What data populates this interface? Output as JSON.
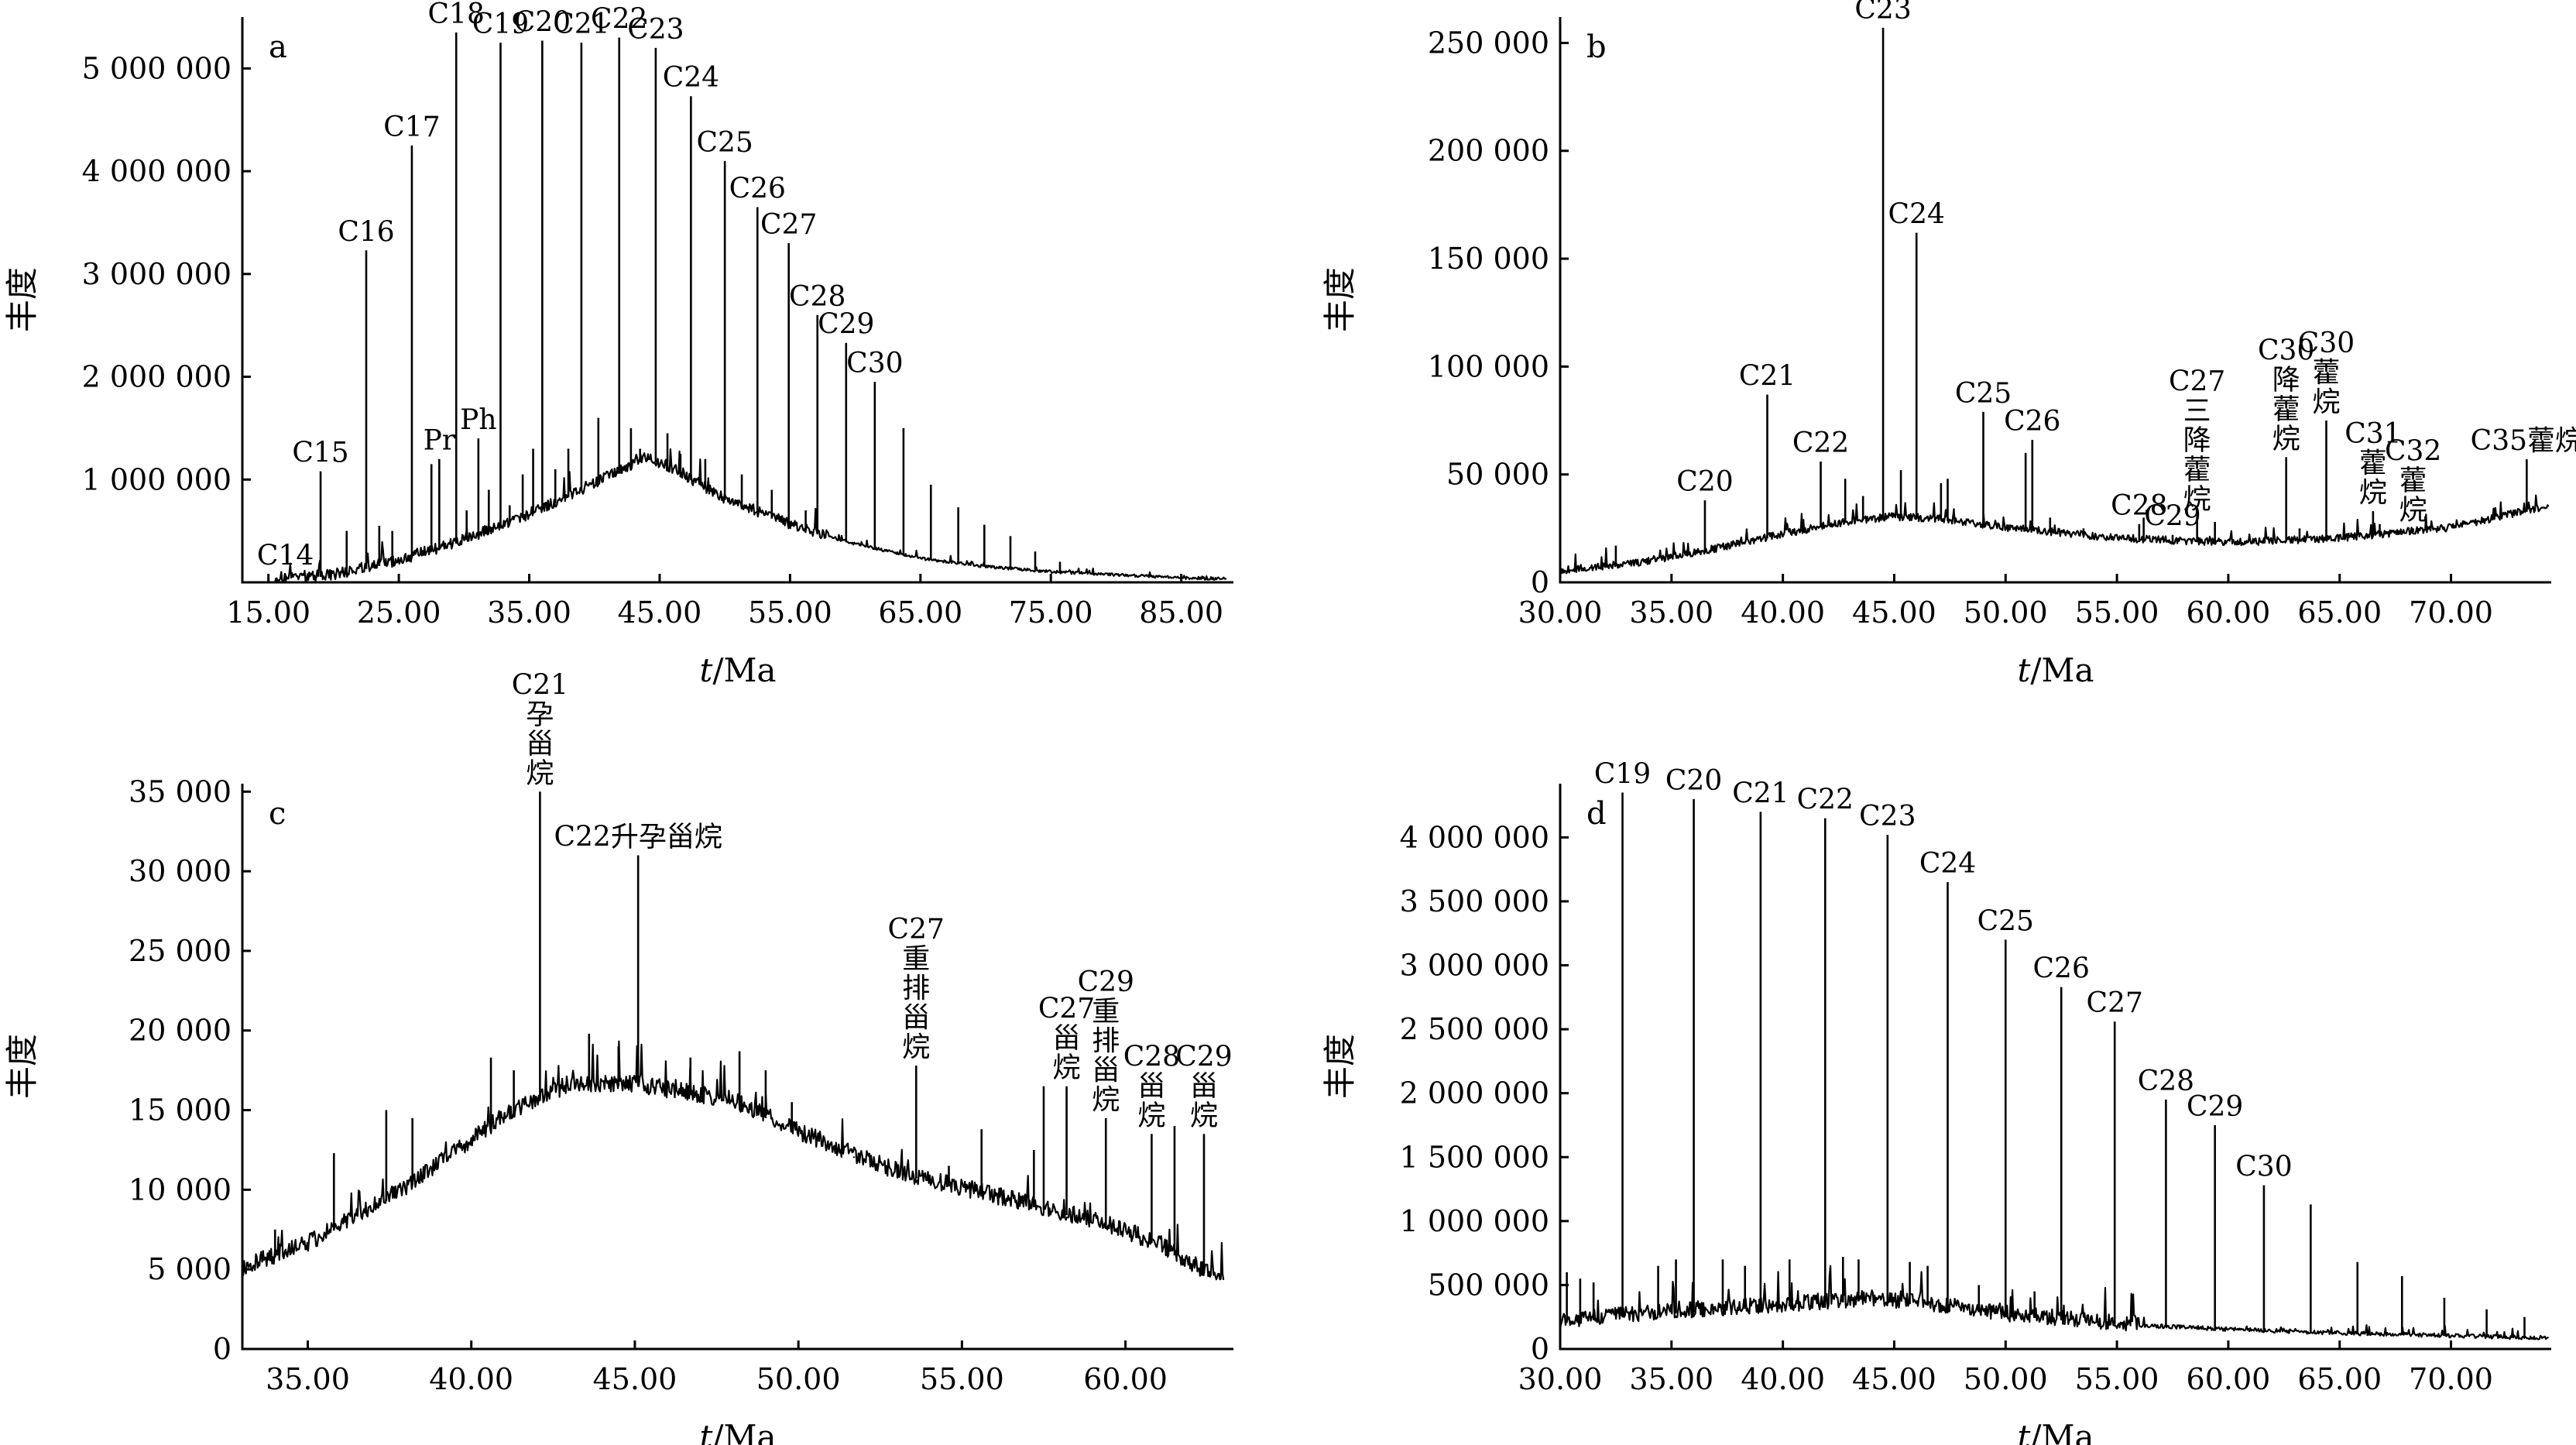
{
  "chart_data": [
    {
      "panel": "a",
      "type": "line",
      "ylabel": "丰度",
      "xlabel_italic": "t",
      "xlabel_rest": "/Ma",
      "xlim": [
        13,
        89
      ],
      "ylim": [
        0,
        5500000
      ],
      "xticks": [
        15,
        25,
        35,
        45,
        55,
        65,
        75,
        85
      ],
      "xtick_labels": [
        "15.00",
        "25.00",
        "35.00",
        "45.00",
        "55.00",
        "65.00",
        "75.00",
        "85.00"
      ],
      "yticks": [
        1000000,
        2000000,
        3000000,
        4000000,
        5000000
      ],
      "ytick_labels": [
        "1 000 000",
        "2 000 000",
        "3 000 000",
        "4 000 000",
        "5 000 000"
      ],
      "baseline": [
        [
          15.5,
          30000
        ],
        [
          20,
          60000
        ],
        [
          25,
          200000
        ],
        [
          30,
          400000
        ],
        [
          35,
          650000
        ],
        [
          40,
          950000
        ],
        [
          44,
          1200000
        ],
        [
          46,
          1100000
        ],
        [
          50,
          800000
        ],
        [
          55,
          550000
        ],
        [
          60,
          370000
        ],
        [
          65,
          230000
        ],
        [
          70,
          150000
        ],
        [
          75,
          100000
        ],
        [
          80,
          70000
        ],
        [
          85,
          40000
        ],
        [
          88.5,
          30000
        ]
      ],
      "noise": 220000,
      "noise_until": 58,
      "peaks": [
        {
          "label": "C14",
          "x": 16.3,
          "y": 80000
        },
        {
          "label": "C15",
          "x": 19.0,
          "y": 1080000
        },
        {
          "label": "C16",
          "x": 22.5,
          "y": 3230000
        },
        {
          "label": "C17",
          "x": 26.0,
          "y": 4250000
        },
        {
          "label": "Pr",
          "x": 28.1,
          "y": 1200000
        },
        {
          "label": "C18",
          "x": 29.4,
          "y": 5350000
        },
        {
          "label": "Ph",
          "x": 31.1,
          "y": 1400000
        },
        {
          "label": "C19",
          "x": 32.8,
          "y": 5250000
        },
        {
          "label": "C20",
          "x": 36.0,
          "y": 5270000
        },
        {
          "label": "C21",
          "x": 39.0,
          "y": 5250000
        },
        {
          "label": "C22",
          "x": 41.9,
          "y": 5300000
        },
        {
          "label": "C23",
          "x": 44.7,
          "y": 5200000
        },
        {
          "label": "C24",
          "x": 47.4,
          "y": 4730000
        },
        {
          "label": "C25",
          "x": 50.0,
          "y": 4100000
        },
        {
          "label": "C26",
          "x": 52.5,
          "y": 3650000
        },
        {
          "label": "C27",
          "x": 54.9,
          "y": 3300000
        },
        {
          "label": "C28",
          "x": 57.1,
          "y": 2600000
        },
        {
          "label": "C29",
          "x": 59.3,
          "y": 2330000
        },
        {
          "label": "C30",
          "x": 61.5,
          "y": 1950000
        },
        {
          "label": "",
          "x": 63.7,
          "y": 1500000
        },
        {
          "label": "",
          "x": 65.8,
          "y": 950000
        },
        {
          "label": "",
          "x": 67.9,
          "y": 730000
        },
        {
          "label": "",
          "x": 69.9,
          "y": 560000
        },
        {
          "label": "",
          "x": 71.9,
          "y": 450000
        },
        {
          "label": "",
          "x": 73.8,
          "y": 300000
        },
        {
          "label": "",
          "x": 75.7,
          "y": 200000
        }
      ],
      "minor_peaks": [
        [
          21,
          500000
        ],
        [
          23.5,
          550000
        ],
        [
          24.5,
          500000
        ],
        [
          27.5,
          1150000
        ],
        [
          30.2,
          700000
        ],
        [
          31.9,
          900000
        ],
        [
          33.5,
          750000
        ],
        [
          34.5,
          1050000
        ],
        [
          35.3,
          1300000
        ],
        [
          37.0,
          1100000
        ],
        [
          38.0,
          1300000
        ],
        [
          40.3,
          1600000
        ],
        [
          42.8,
          1500000
        ],
        [
          43.5,
          1300000
        ],
        [
          45.6,
          1450000
        ],
        [
          46.6,
          1250000
        ],
        [
          48.5,
          1200000
        ],
        [
          51.3,
          1050000
        ],
        [
          53.6,
          900000
        ],
        [
          56.2,
          700000
        ]
      ]
    },
    {
      "panel": "b",
      "type": "line",
      "ylabel": "丰度",
      "xlabel_italic": "t",
      "xlabel_rest": "/Ma",
      "xlim": [
        30,
        74.5
      ],
      "ylim": [
        0,
        262000
      ],
      "xticks": [
        30,
        35,
        40,
        45,
        50,
        55,
        60,
        65,
        70
      ],
      "xtick_labels": [
        "30.00",
        "35.00",
        "40.00",
        "45.00",
        "50.00",
        "55.00",
        "60.00",
        "65.00",
        "70.00"
      ],
      "yticks": [
        0,
        50000,
        100000,
        150000,
        200000,
        250000
      ],
      "ytick_labels": [
        "0",
        "50 000",
        "100 000",
        "150 000",
        "200 000",
        "250 000"
      ],
      "baseline": [
        [
          30,
          5000
        ],
        [
          33,
          8000
        ],
        [
          36,
          13000
        ],
        [
          40,
          22000
        ],
        [
          43,
          28000
        ],
        [
          45,
          30000
        ],
        [
          47,
          29000
        ],
        [
          50,
          25000
        ],
        [
          55,
          20000
        ],
        [
          60,
          18000
        ],
        [
          65,
          20000
        ],
        [
          70,
          25000
        ],
        [
          74.4,
          35000
        ]
      ],
      "noise": 7000,
      "noise_until": 74,
      "peaks": [
        {
          "label": "C20",
          "x": 36.5,
          "y": 38000
        },
        {
          "label": "C21",
          "x": 39.3,
          "y": 87000
        },
        {
          "label": "C22",
          "x": 41.7,
          "y": 56000
        },
        {
          "label": "C23",
          "x": 44.5,
          "y": 257000
        },
        {
          "label": "C24",
          "x": 46.0,
          "y": 162000
        },
        {
          "label": "C25",
          "x": 49.0,
          "y": 79000
        },
        {
          "label": "C26",
          "x": 51.2,
          "y": 66000
        },
        {
          "label": "C27\n三\n降\n藿\n烷",
          "x": 58.6,
          "y": 30000
        },
        {
          "label": "C28",
          "x": 56.0,
          "y": 27000
        },
        {
          "label": "C29",
          "x": 57.5,
          "y": 22000
        },
        {
          "label": "C30\n降\n藿\n烷",
          "x": 62.6,
          "y": 58000
        },
        {
          "label": "C30\n藿\n烷",
          "x": 64.4,
          "y": 75000
        },
        {
          "label": "C31\n藿\n烷",
          "x": 66.5,
          "y": 33000
        },
        {
          "label": "C32\n藿\n烷",
          "x": 68.3,
          "y": 25000
        },
        {
          "label": "C35藿烷",
          "x": 73.4,
          "y": 57000
        }
      ],
      "minor_peaks": [
        [
          32.5,
          17000
        ],
        [
          42.8,
          48000
        ],
        [
          43.6,
          40000
        ],
        [
          45.3,
          52000
        ],
        [
          47.1,
          46000
        ],
        [
          47.4,
          48000
        ],
        [
          50.9,
          60000
        ],
        [
          52.0,
          30000
        ],
        [
          53.5,
          25000
        ],
        [
          56.2,
          30000
        ],
        [
          59.4,
          28000
        ],
        [
          63.2,
          25000
        ],
        [
          65.4,
          23000
        ],
        [
          66.8,
          27000
        ],
        [
          70.1,
          25000
        ]
      ]
    },
    {
      "panel": "c",
      "type": "line",
      "ylabel": "丰度",
      "xlabel_italic": "t",
      "xlabel_rest": "/Ma",
      "xlim": [
        33,
        63.3
      ],
      "ylim": [
        0,
        35500
      ],
      "xticks": [
        35,
        40,
        45,
        50,
        55,
        60
      ],
      "xtick_labels": [
        "35.00",
        "40.00",
        "45.00",
        "50.00",
        "55.00",
        "60.00"
      ],
      "yticks": [
        0,
        5000,
        10000,
        15000,
        20000,
        25000,
        30000,
        35000
      ],
      "ytick_labels": [
        "0",
        "5 000",
        "10 000",
        "15 000",
        "20 000",
        "25 000",
        "30 000",
        "35 000"
      ],
      "baseline": [
        [
          33,
          5000
        ],
        [
          35,
          6500
        ],
        [
          38,
          10000
        ],
        [
          41,
          14500
        ],
        [
          43,
          16500
        ],
        [
          45,
          16500
        ],
        [
          48,
          15500
        ],
        [
          50,
          13500
        ],
        [
          53,
          11000
        ],
        [
          56,
          9500
        ],
        [
          59,
          8000
        ],
        [
          61,
          6500
        ],
        [
          63,
          4000
        ]
      ],
      "noise": 2200,
      "noise_until": 63,
      "peaks": [
        {
          "label": "C21\n孕\n甾\n烷",
          "x": 42.1,
          "y": 35000
        },
        {
          "label": "C22升孕甾烷",
          "x": 45.1,
          "y": 31000
        },
        {
          "label": "C27\n重\n排\n甾\n烷",
          "x": 53.6,
          "y": 17800
        },
        {
          "label": "C27\n甾\n烷",
          "x": 58.2,
          "y": 16500
        },
        {
          "label": "C29\n重\n排\n甾\n烷",
          "x": 59.4,
          "y": 14500
        },
        {
          "label": "C28\n甾\n烷",
          "x": 60.8,
          "y": 13500
        },
        {
          "label": "C29\n甾\n烷",
          "x": 62.4,
          "y": 13500
        }
      ],
      "minor_peaks": [
        [
          34.0,
          7500
        ],
        [
          35.8,
          12300
        ],
        [
          37.4,
          15000
        ],
        [
          38.2,
          14500
        ],
        [
          40.6,
          18300
        ],
        [
          41.3,
          17500
        ],
        [
          43.6,
          19800
        ],
        [
          44.5,
          19000
        ],
        [
          46.7,
          18300
        ],
        [
          48.2,
          18700
        ],
        [
          49.0,
          17500
        ],
        [
          49.8,
          15500
        ],
        [
          51.7,
          12000
        ],
        [
          54.6,
          11500
        ],
        [
          55.6,
          13800
        ],
        [
          57.2,
          12500
        ],
        [
          57.5,
          16500
        ],
        [
          61.5,
          14000
        ]
      ]
    },
    {
      "panel": "d",
      "type": "line",
      "ylabel": "丰度",
      "xlabel_italic": "t",
      "xlabel_rest": "/Ma",
      "xlim": [
        30,
        74.5
      ],
      "ylim": [
        0,
        4420000
      ],
      "xticks": [
        30,
        35,
        40,
        45,
        50,
        55,
        60,
        65,
        70
      ],
      "xtick_labels": [
        "30.00",
        "35.00",
        "40.00",
        "45.00",
        "50.00",
        "55.00",
        "60.00",
        "65.00",
        "70.00"
      ],
      "yticks": [
        0,
        500000,
        1000000,
        1500000,
        2000000,
        2500000,
        3000000,
        3500000,
        4000000
      ],
      "ytick_labels": [
        "0",
        "500 000",
        "1 000 000",
        "1 500 000",
        "2 000 000",
        "2 500 000",
        "3 000 000",
        "3 500 000",
        "4 000 000"
      ],
      "baseline": [
        [
          30,
          200000
        ],
        [
          33,
          250000
        ],
        [
          37,
          300000
        ],
        [
          40,
          330000
        ],
        [
          44,
          380000
        ],
        [
          47,
          330000
        ],
        [
          50,
          260000
        ],
        [
          55,
          190000
        ],
        [
          60,
          150000
        ],
        [
          65,
          120000
        ],
        [
          70,
          100000
        ],
        [
          74.4,
          80000
        ]
      ],
      "noise": 250000,
      "noise_until": 56,
      "peaks": [
        {
          "label": "C19",
          "x": 32.8,
          "y": 4350000
        },
        {
          "label": "C20",
          "x": 36.0,
          "y": 4300000
        },
        {
          "label": "C21",
          "x": 39.0,
          "y": 4200000
        },
        {
          "label": "C22",
          "x": 41.9,
          "y": 4150000
        },
        {
          "label": "C23",
          "x": 44.7,
          "y": 4020000
        },
        {
          "label": "C24",
          "x": 47.4,
          "y": 3650000
        },
        {
          "label": "C25",
          "x": 50.0,
          "y": 3200000
        },
        {
          "label": "C26",
          "x": 52.5,
          "y": 2830000
        },
        {
          "label": "C27",
          "x": 54.9,
          "y": 2560000
        },
        {
          "label": "C28",
          "x": 57.2,
          "y": 1950000
        },
        {
          "label": "C29",
          "x": 59.4,
          "y": 1750000
        },
        {
          "label": "C30",
          "x": 61.6,
          "y": 1280000
        },
        {
          "label": "",
          "x": 63.7,
          "y": 1130000
        },
        {
          "label": "",
          "x": 65.8,
          "y": 680000
        },
        {
          "label": "",
          "x": 67.8,
          "y": 570000
        },
        {
          "label": "",
          "x": 69.7,
          "y": 400000
        },
        {
          "label": "",
          "x": 71.6,
          "y": 310000
        },
        {
          "label": "",
          "x": 73.3,
          "y": 250000
        }
      ],
      "minor_peaks": [
        [
          30.3,
          600000
        ],
        [
          30.9,
          550000
        ],
        [
          31.5,
          520000
        ],
        [
          34.4,
          650000
        ],
        [
          35.2,
          700000
        ],
        [
          37.3,
          700000
        ],
        [
          38.3,
          650000
        ],
        [
          40.3,
          700000
        ],
        [
          42.7,
          720000
        ],
        [
          43.4,
          700000
        ],
        [
          45.7,
          680000
        ],
        [
          46.5,
          650000
        ],
        [
          48.8,
          500000
        ],
        [
          51.3,
          450000
        ]
      ]
    }
  ]
}
